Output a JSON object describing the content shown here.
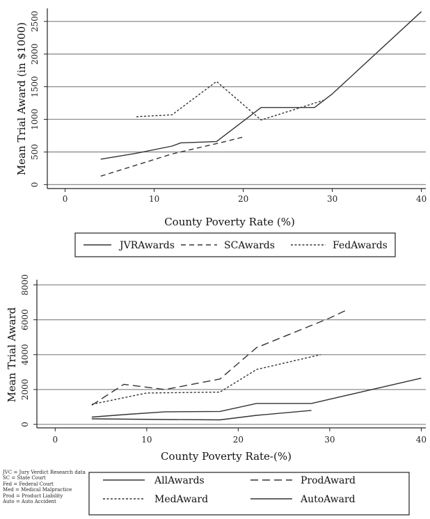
{
  "chart_data": [
    {
      "type": "line",
      "ylabel": "Mean Trial Award (in $1000)",
      "xlabel": "County Poverty Rate (%)",
      "xlim": [
        -2,
        40.5
      ],
      "ylim": [
        -60,
        2700
      ],
      "xticks": [
        0,
        10,
        20,
        30,
        40
      ],
      "yticks": [
        0,
        500,
        1000,
        1500,
        2000,
        2500
      ],
      "grid": true,
      "legend_position": "bottom",
      "series": [
        {
          "name": "JVRAwards",
          "style": "solid",
          "x": [
            4,
            8,
            12,
            13,
            15,
            17,
            22,
            28,
            30,
            40
          ],
          "y": [
            390,
            480,
            590,
            640,
            650,
            660,
            1180,
            1180,
            1390,
            2650
          ]
        },
        {
          "name": "SCAwards",
          "style": "dashed",
          "x": [
            4,
            12,
            18,
            20
          ],
          "y": [
            130,
            470,
            660,
            730
          ]
        },
        {
          "name": "FedAwards",
          "style": "dotted",
          "x": [
            8,
            12,
            17,
            22,
            29
          ],
          "y": [
            1040,
            1070,
            1580,
            990,
            1290
          ]
        }
      ]
    },
    {
      "type": "line",
      "ylabel": "Mean Trial Award",
      "xlabel": "County Poverty Rate-(%)",
      "xlim": [
        -2,
        40.5
      ],
      "ylim": [
        -200,
        8300
      ],
      "xticks": [
        0,
        10,
        20,
        30,
        40
      ],
      "yticks": [
        0,
        2000,
        4000,
        6000,
        8000
      ],
      "grid": true,
      "legend_position": "bottom",
      "series": [
        {
          "name": "AllAwards",
          "style": "solid",
          "x": [
            4,
            8,
            12,
            18,
            22,
            28,
            40
          ],
          "y": [
            420,
            580,
            720,
            740,
            1200,
            1200,
            2650
          ]
        },
        {
          "name": "ProdAward",
          "style": "longdash",
          "x": [
            4,
            7.5,
            12,
            18,
            22,
            30,
            32
          ],
          "y": [
            1100,
            2300,
            2000,
            2600,
            4400,
            6100,
            6600
          ]
        },
        {
          "name": "MedAward",
          "style": "dotted",
          "x": [
            4,
            10,
            18,
            22,
            29
          ],
          "y": [
            1150,
            1800,
            1850,
            3150,
            4000
          ]
        },
        {
          "name": "AutoAward",
          "style": "solid-light",
          "x": [
            4,
            8,
            12,
            18,
            22,
            28
          ],
          "y": [
            320,
            300,
            280,
            260,
            520,
            800
          ]
        }
      ]
    }
  ],
  "notes": [
    "JVC = Jury Verdict Research data",
    "SC = State Court",
    "Fed = Federal Court",
    "Med = Medical Malpractice",
    "Prod = Product Liability",
    "Auto = Auto Accident"
  ]
}
